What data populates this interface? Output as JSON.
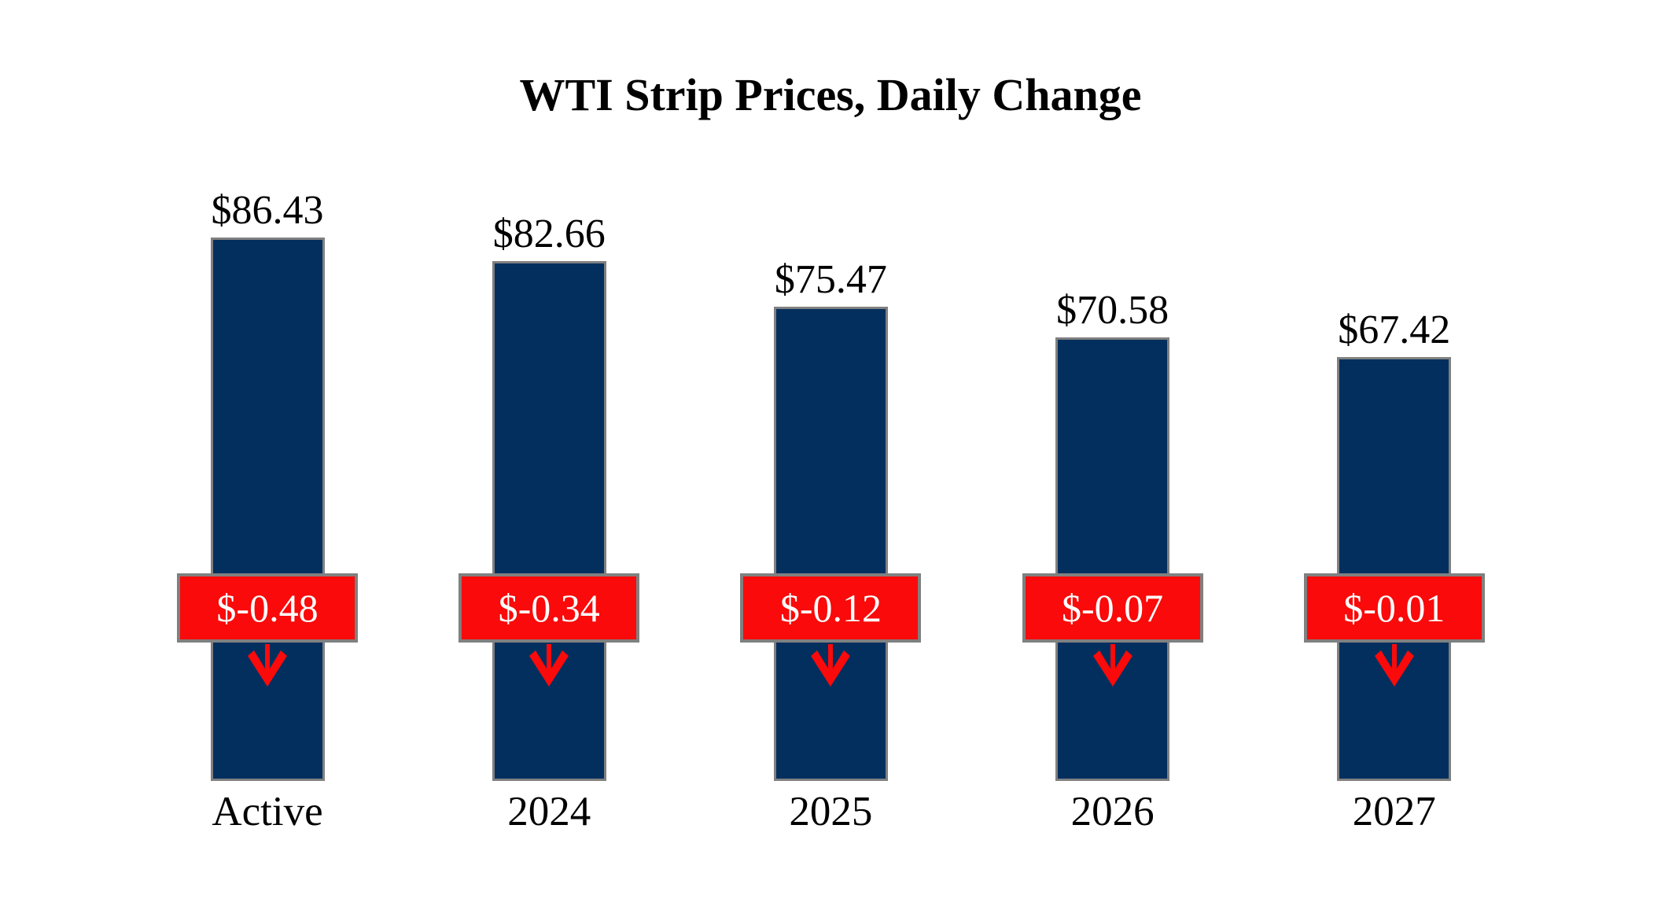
{
  "page": {
    "background_color": "#FFFFFF"
  },
  "chart_data": {
    "type": "bar",
    "title": "WTI Strip Prices, Daily Change",
    "categories": [
      "Active",
      "2024",
      "2025",
      "2026",
      "2027"
    ],
    "series": [
      {
        "name": "WTI Strip Price",
        "values": [
          86.43,
          82.66,
          75.47,
          70.58,
          67.42
        ],
        "labels": [
          "$86.43",
          "$82.66",
          "$75.47",
          "$70.58",
          "$67.42"
        ]
      },
      {
        "name": "Daily Change",
        "values": [
          -0.48,
          -0.34,
          -0.12,
          -0.07,
          -0.01
        ],
        "labels": [
          "$-0.48",
          "$-0.34",
          "$-0.12",
          "$-0.07",
          "$-0.01"
        ]
      }
    ],
    "xlabel": "",
    "ylabel": "",
    "ylim": [
      0,
      86.43
    ],
    "grid": false,
    "legend": false,
    "axes_drawn": false,
    "value_labels_position": "above bars",
    "change_labels_position": "boxes overlaid on bars with down arrows",
    "change_icon": "down-arrow",
    "colors": {
      "bar_fill": "#032F5F",
      "border_gray": "#808080",
      "change_fill": "#FA0A0A",
      "change_text": "#FFFFFF",
      "arrow_red": "#FA0A0A",
      "text_black": "#000000"
    }
  }
}
